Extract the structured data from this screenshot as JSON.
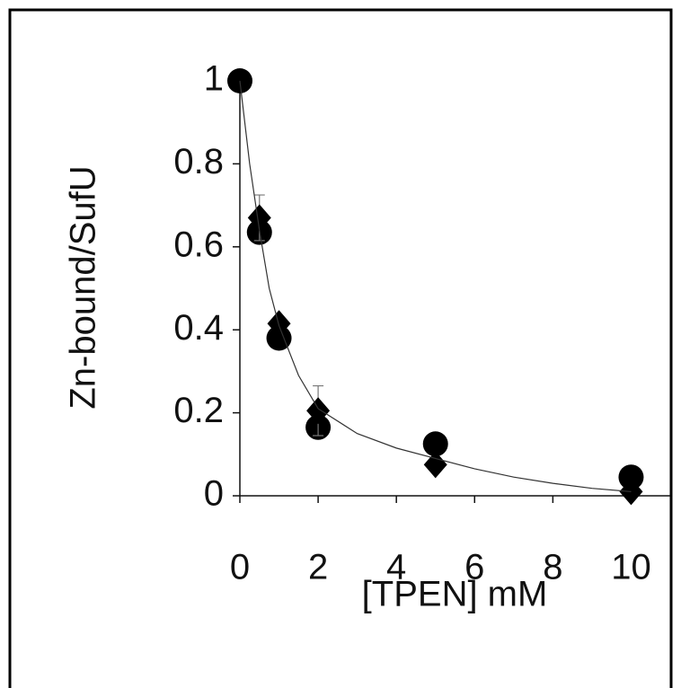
{
  "chart_data": {
    "type": "scatter",
    "x_label": "[TPEN] mM",
    "y_label": "Zn-bound/SufU",
    "xlim": [
      0,
      11
    ],
    "ylim": [
      0,
      1
    ],
    "xticks": [
      0,
      2,
      4,
      6,
      8,
      10
    ],
    "yticks": [
      0,
      0.2,
      0.4,
      0.6,
      0.8,
      1
    ],
    "series": [
      {
        "marker": "circle",
        "color": "#000000",
        "x": [
          0,
          0.5,
          1,
          2,
          5,
          10
        ],
        "values": [
          1,
          0.635,
          0.38,
          0.165,
          0.125,
          0.045
        ]
      },
      {
        "marker": "diamond",
        "color": "#000000",
        "x": [
          0.5,
          1,
          2,
          5,
          10
        ],
        "values": [
          0.67,
          0.415,
          0.205,
          0.075,
          0.01
        ],
        "errors": [
          0.055,
          null,
          0.06,
          null,
          null
        ]
      },
      {
        "marker": "line",
        "color": "#333333",
        "x": [
          0,
          0.25,
          0.5,
          0.75,
          1,
          1.5,
          2,
          3,
          4,
          5,
          6,
          7,
          8,
          9,
          10
        ],
        "values": [
          1,
          0.8,
          0.64,
          0.5,
          0.41,
          0.29,
          0.21,
          0.15,
          0.115,
          0.09,
          0.065,
          0.045,
          0.03,
          0.018,
          0.01
        ]
      }
    ]
  }
}
